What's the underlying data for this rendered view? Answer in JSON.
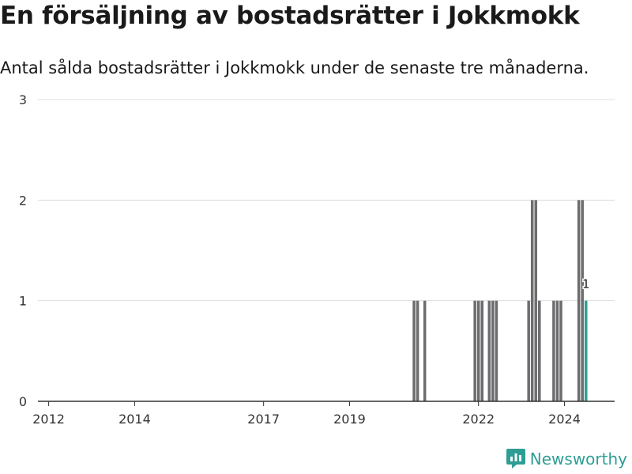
{
  "header": {
    "title": "En försäljning av bostadsrätter i Jokkmokk",
    "subtitle": "Antal sålda bostadsrätter i Jokkmokk under de senaste tre månaderna."
  },
  "brand": {
    "name": "Newsworthy",
    "icon": "newsworthy-logo-icon",
    "color": "#2e9e95"
  },
  "chart_data": {
    "type": "bar",
    "ylim": [
      0,
      3
    ],
    "yticks": [
      0,
      1,
      2,
      3
    ],
    "xlim": [
      "2011-10",
      "2025-03"
    ],
    "xticks": [
      {
        "date": "2012-01",
        "label": "2012"
      },
      {
        "date": "2014-01",
        "label": "2014"
      },
      {
        "date": "2017-01",
        "label": "2017"
      },
      {
        "date": "2019-01",
        "label": "2019"
      },
      {
        "date": "2022-01",
        "label": "2022"
      },
      {
        "date": "2024-01",
        "label": "2024"
      }
    ],
    "bar_color": "#6d6d70",
    "highlight_color": "#2e9e95",
    "grid": true,
    "data": [
      {
        "date": "2020-07",
        "value": 1
      },
      {
        "date": "2020-08",
        "value": 1
      },
      {
        "date": "2020-10",
        "value": 1
      },
      {
        "date": "2021-12",
        "value": 1
      },
      {
        "date": "2022-01",
        "value": 1
      },
      {
        "date": "2022-02",
        "value": 1
      },
      {
        "date": "2022-04",
        "value": 1
      },
      {
        "date": "2022-05",
        "value": 1
      },
      {
        "date": "2022-06",
        "value": 1
      },
      {
        "date": "2023-03",
        "value": 1
      },
      {
        "date": "2023-04",
        "value": 2
      },
      {
        "date": "2023-05",
        "value": 2
      },
      {
        "date": "2023-06",
        "value": 1
      },
      {
        "date": "2023-10",
        "value": 1
      },
      {
        "date": "2023-11",
        "value": 1
      },
      {
        "date": "2023-12",
        "value": 1
      },
      {
        "date": "2024-05",
        "value": 2
      },
      {
        "date": "2024-06",
        "value": 2
      },
      {
        "date": "2024-07",
        "value": 1,
        "highlight": true,
        "label": "1"
      }
    ]
  }
}
